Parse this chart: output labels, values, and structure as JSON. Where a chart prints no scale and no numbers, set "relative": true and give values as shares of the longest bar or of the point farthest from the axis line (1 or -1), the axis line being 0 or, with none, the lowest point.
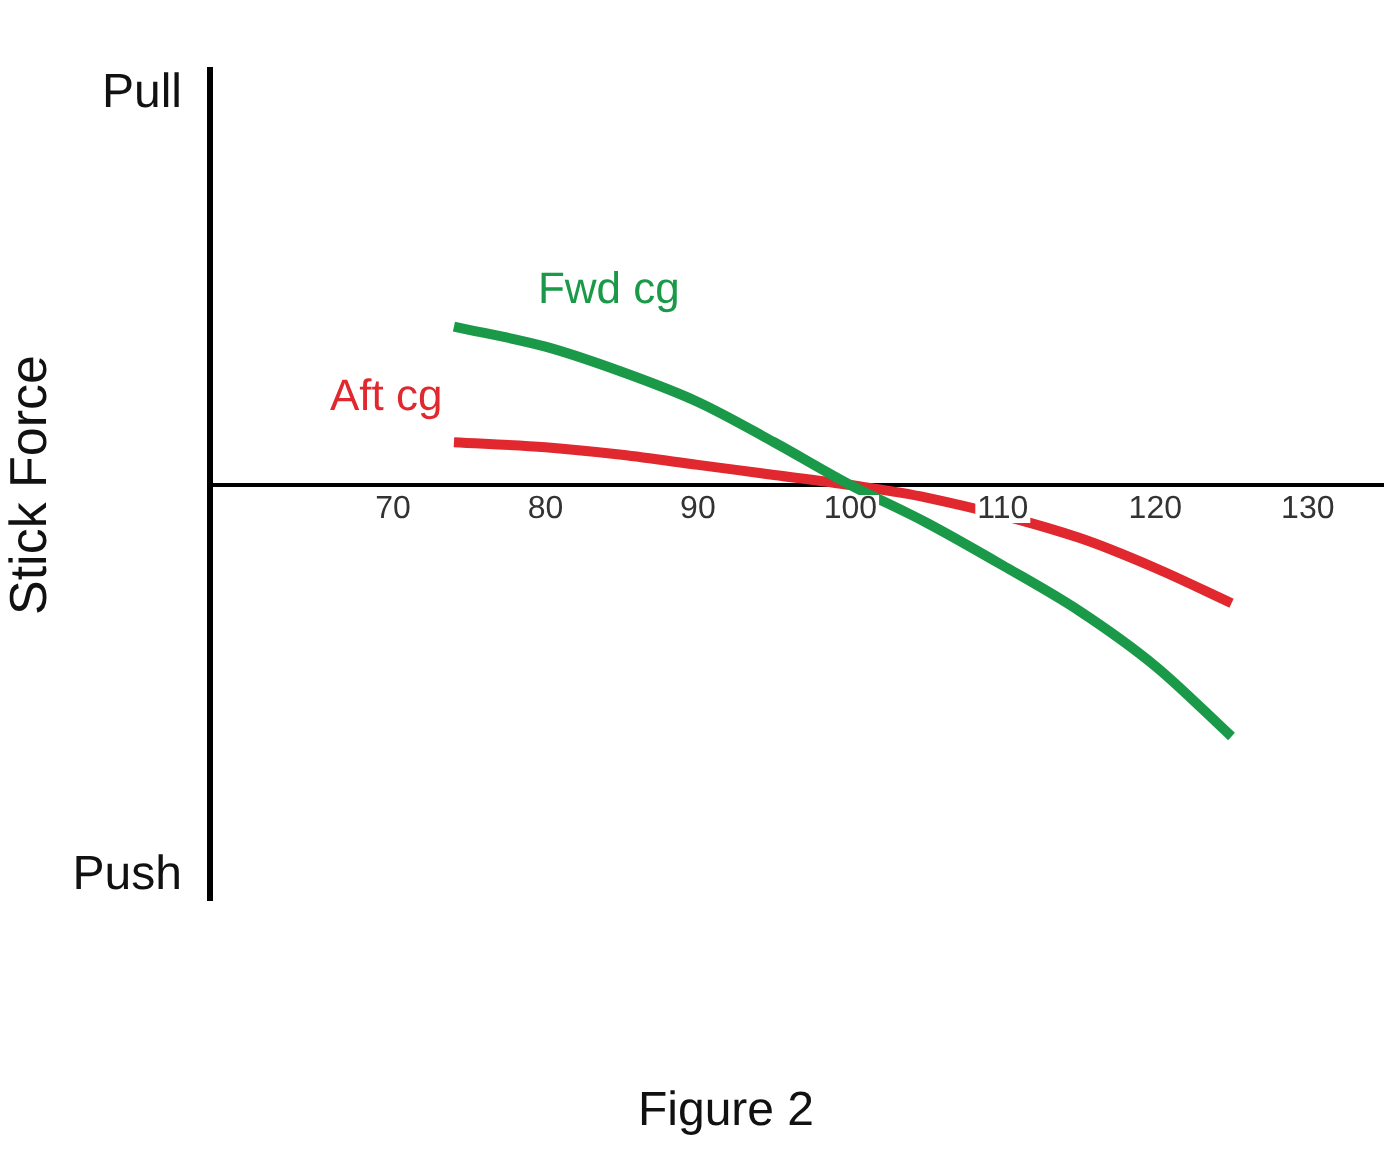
{
  "chart_data": {
    "type": "line",
    "relative": true,
    "ylabel": "Stick Force",
    "xlim": [
      58,
      135
    ],
    "xticks": [
      70,
      80,
      90,
      100,
      110,
      120,
      130
    ],
    "grid": false,
    "legend": false,
    "marker": "none",
    "line_style": "solid",
    "series": [
      {
        "name": "Fwd cg",
        "color": "#1a9a48",
        "x": [
          74,
          80,
          85,
          90,
          95,
          100,
          105,
          110,
          115,
          120,
          125
        ],
        "values": [
          0.63,
          0.55,
          0.45,
          0.33,
          0.17,
          0,
          -0.15,
          -0.32,
          -0.5,
          -0.72,
          -1
        ]
      },
      {
        "name": "Aft cg",
        "color": "#e0282e",
        "x": [
          74,
          80,
          85,
          90,
          95,
          100,
          105,
          115,
          120,
          125
        ],
        "values": [
          0.17,
          0.15,
          0.12,
          0.08,
          0.04,
          0,
          -0.05,
          -0.21,
          -0.33,
          -0.47
        ]
      }
    ],
    "annotations": [
      "Pull",
      "Push",
      "Figure 2"
    ]
  }
}
